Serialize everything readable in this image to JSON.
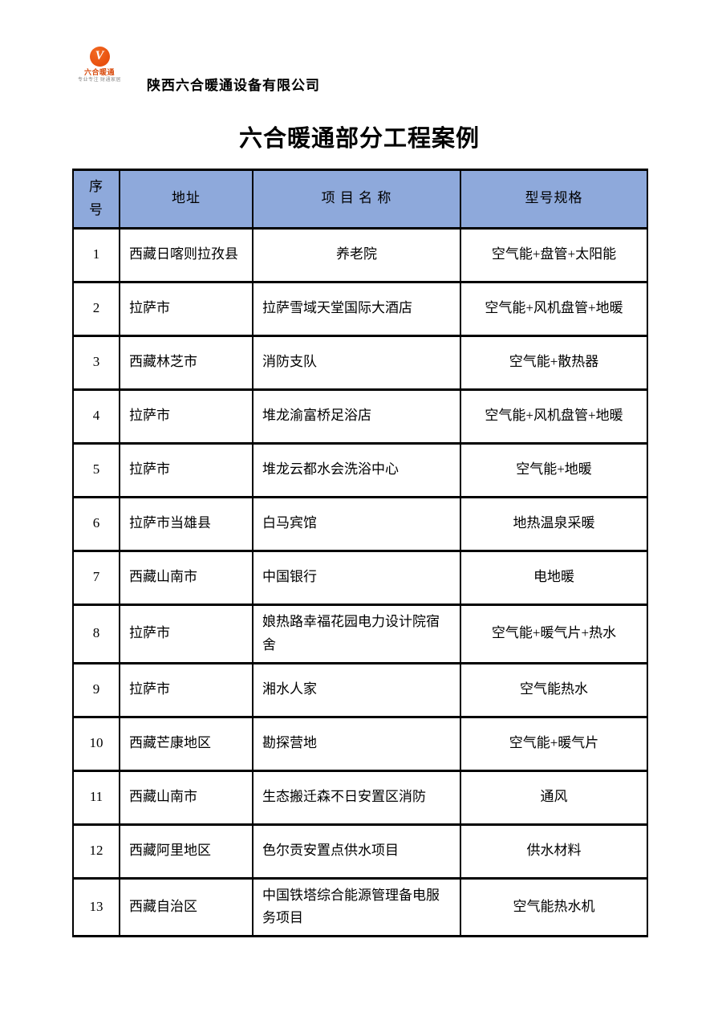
{
  "logo": {
    "glyph": "V",
    "brand_text": "六合暖通",
    "slogan": "专业专注 财通家居",
    "circle_color": "#E8500F"
  },
  "letterhead": {
    "company_name": "陕西六合暖通设备有限公司"
  },
  "title": "六合暖通部分工程案例",
  "table": {
    "header_bg": "#8EA9DB",
    "border_color": "#000000",
    "columns": [
      "序号",
      "地址",
      "项 目 名 称",
      "型号规格"
    ],
    "rows": [
      {
        "no": "1",
        "address": "西藏日喀则拉孜县",
        "project": "养老院",
        "spec": "空气能+盘管+太阳能",
        "project_align": "center"
      },
      {
        "no": "2",
        "address": "拉萨市",
        "project": "拉萨雪域天堂国际大酒店",
        "spec": "空气能+风机盘管+地暖"
      },
      {
        "no": "3",
        "address": "西藏林芝市",
        "project": "消防支队",
        "spec": "空气能+散热器"
      },
      {
        "no": "4",
        "address": "拉萨市",
        "project": "堆龙渝富桥足浴店",
        "spec": "空气能+风机盘管+地暖"
      },
      {
        "no": "5",
        "address": "拉萨市",
        "project": "堆龙云都水会洗浴中心",
        "spec": "空气能+地暖"
      },
      {
        "no": "6",
        "address": "拉萨市当雄县",
        "project": "白马宾馆",
        "spec": "地热温泉采暖"
      },
      {
        "no": "7",
        "address": "西藏山南市",
        "project": "中国银行",
        "spec": "电地暖"
      },
      {
        "no": "8",
        "address": "拉萨市",
        "project": "娘热路幸福花园电力设计院宿舍",
        "spec": "空气能+暖气片+热水"
      },
      {
        "no": "9",
        "address": "拉萨市",
        "project": "湘水人家",
        "spec": "空气能热水"
      },
      {
        "no": "10",
        "address": "西藏芒康地区",
        "project": "勘探营地",
        "spec": "空气能+暖气片"
      },
      {
        "no": "11",
        "address": "西藏山南市",
        "project": "生态搬迁森不日安置区消防",
        "spec": "通风"
      },
      {
        "no": "12",
        "address": "西藏阿里地区",
        "project": "色尔贡安置点供水项目",
        "spec": "供水材料"
      },
      {
        "no": "13",
        "address": "西藏自治区",
        "project": "中国铁塔综合能源管理备电服务项目",
        "spec": "空气能热水机"
      }
    ]
  }
}
